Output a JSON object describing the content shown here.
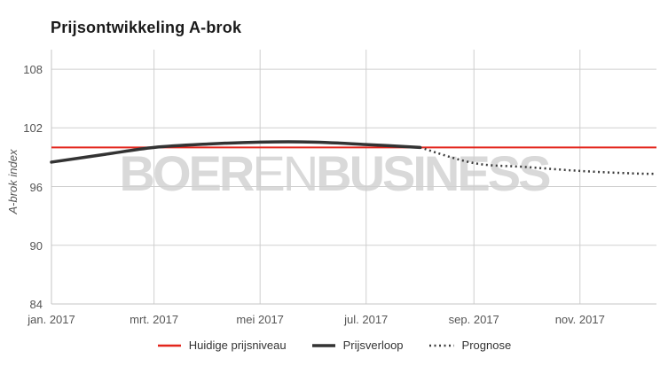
{
  "title": "Prijsontwikkeling A-brok",
  "watermark": {
    "part1": "BOER",
    "part2": "EN",
    "part3": "BUSINESS"
  },
  "colors": {
    "current_price_line": "#e3251c",
    "price_history_line": "#333333",
    "forecast_line": "#3c3c3c",
    "gridline": "#cfcfcf",
    "axis_line": "#c6c6c6",
    "tick_text": "#555555",
    "watermark": "#d9d9d9"
  },
  "chart_data": {
    "type": "line",
    "title": "Prijsontwikkeling A-brok",
    "xlabel": "",
    "ylabel": "A-brok index",
    "ylim": [
      84,
      110
    ],
    "yticks": [
      84,
      90,
      96,
      102,
      108
    ],
    "x_range_days": [
      0,
      348
    ],
    "xticks": [
      {
        "day": 0,
        "label": "jan. 2017"
      },
      {
        "day": 59,
        "label": "mrt. 2017"
      },
      {
        "day": 120,
        "label": "mei 2017"
      },
      {
        "day": 181,
        "label": "jul. 2017"
      },
      {
        "day": 243,
        "label": "sep. 2017"
      },
      {
        "day": 304,
        "label": "nov. 2017"
      }
    ],
    "grid": "on",
    "legend_position": "bottom-center",
    "series": [
      {
        "name": "Huidige prijsniveau",
        "style": "plotline-horizontal",
        "value": 100,
        "color": "#e3251c"
      },
      {
        "name": "Prijsverloop",
        "style": "solid",
        "color": "#333333",
        "points": [
          [
            0,
            98.5
          ],
          [
            31,
            99.3
          ],
          [
            59,
            100.0
          ],
          [
            90,
            100.35
          ],
          [
            120,
            100.55
          ],
          [
            151,
            100.55
          ],
          [
            181,
            100.3
          ],
          [
            212,
            100.0
          ]
        ]
      },
      {
        "name": "Prognose",
        "style": "dotted",
        "color": "#3c3c3c",
        "points": [
          [
            212,
            100.0
          ],
          [
            243,
            98.4
          ],
          [
            273,
            98.0
          ],
          [
            304,
            97.6
          ],
          [
            334,
            97.35
          ],
          [
            348,
            97.3
          ]
        ]
      }
    ]
  }
}
